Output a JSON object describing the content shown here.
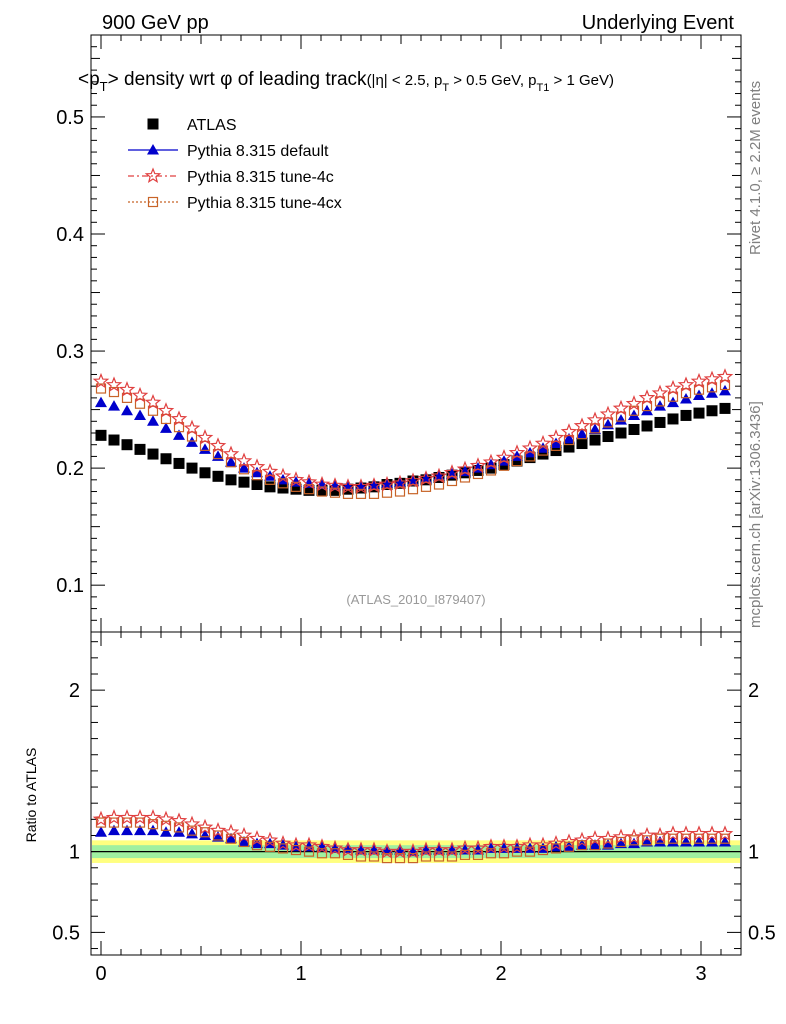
{
  "header": {
    "left": "900 GeV pp",
    "right": "Underlying Event"
  },
  "side_labels": {
    "rivet": "Rivet 4.1.0, ≥ 2.2M events",
    "mcplots": "mcplots.cern.ch [arXiv:1306.3436]"
  },
  "title": {
    "part1": "<p",
    "part1_sub": "T",
    "part2": "> density wrt ",
    "phi": "φ",
    "part3": " of leading track",
    "cuts": "(|η| < 2.5, p",
    "cuts_sub1": "T",
    "cuts2": " > 0.5 GeV, p",
    "cuts_sub2": "T1",
    "cuts3": " > 1 GeV)"
  },
  "watermark": "(ATLAS_2010_I879407)",
  "ratio_ylabel": "Ratio to ATLAS",
  "legend": [
    {
      "label": "ATLAS",
      "marker": "square-filled",
      "color": "#000000"
    },
    {
      "label": "Pythia 8.315 default",
      "marker": "triangle-filled",
      "color": "#0000cc"
    },
    {
      "label": "Pythia 8.315 tune-4c",
      "marker": "star-open",
      "color": "#e04040"
    },
    {
      "label": "Pythia 8.315 tune-4cx",
      "marker": "square-open",
      "color": "#c86428"
    }
  ],
  "chart_data": {
    "type": "scatter",
    "x_range": [
      -0.05,
      3.2
    ],
    "y_range": [
      0.06,
      0.57
    ],
    "ratio_range": [
      0.36,
      2.36
    ],
    "x_ticks": [
      "0",
      "1",
      "2",
      "3"
    ],
    "y_ticks": [
      "0.1",
      "0.2",
      "0.3",
      "0.4",
      "0.5"
    ],
    "ratio_ticks": [
      "0.5",
      "1",
      "2"
    ],
    "x": [
      0.0,
      0.065,
      0.13,
      0.195,
      0.26,
      0.325,
      0.39,
      0.455,
      0.52,
      0.585,
      0.65,
      0.715,
      0.78,
      0.845,
      0.91,
      0.975,
      1.04,
      1.105,
      1.17,
      1.235,
      1.3,
      1.365,
      1.43,
      1.495,
      1.56,
      1.625,
      1.69,
      1.755,
      1.82,
      1.885,
      1.95,
      2.015,
      2.08,
      2.145,
      2.21,
      2.275,
      2.34,
      2.405,
      2.47,
      2.535,
      2.6,
      2.665,
      2.73,
      2.795,
      2.86,
      2.925,
      2.99,
      3.055,
      3.12
    ],
    "series": [
      {
        "name": "ATLAS",
        "values": [
          0.228,
          0.224,
          0.22,
          0.216,
          0.212,
          0.208,
          0.204,
          0.2,
          0.196,
          0.193,
          0.19,
          0.188,
          0.186,
          0.184,
          0.183,
          0.182,
          0.181,
          0.181,
          0.181,
          0.182,
          0.183,
          0.184,
          0.186,
          0.187,
          0.189,
          0.19,
          0.192,
          0.194,
          0.196,
          0.198,
          0.2,
          0.203,
          0.206,
          0.209,
          0.212,
          0.215,
          0.218,
          0.221,
          0.224,
          0.227,
          0.23,
          0.233,
          0.236,
          0.239,
          0.242,
          0.245,
          0.247,
          0.249,
          0.251
        ],
        "ratio": [
          1.0,
          1.0,
          1.0,
          1.0,
          1.0,
          1.0,
          1.0,
          1.0,
          1.0,
          1.0,
          1.0,
          1.0,
          1.0,
          1.0,
          1.0,
          1.0,
          1.0,
          1.0,
          1.0,
          1.0,
          1.0,
          1.0,
          1.0,
          1.0,
          1.0,
          1.0,
          1.0,
          1.0,
          1.0,
          1.0,
          1.0,
          1.0,
          1.0,
          1.0,
          1.0,
          1.0,
          1.0,
          1.0,
          1.0,
          1.0,
          1.0,
          1.0,
          1.0,
          1.0,
          1.0,
          1.0,
          1.0,
          1.0,
          1.0
        ]
      },
      {
        "name": "Pythia 8.315 default",
        "values": [
          0.256,
          0.253,
          0.249,
          0.245,
          0.24,
          0.234,
          0.228,
          0.222,
          0.216,
          0.21,
          0.205,
          0.2,
          0.196,
          0.193,
          0.19,
          0.188,
          0.187,
          0.186,
          0.185,
          0.185,
          0.185,
          0.186,
          0.187,
          0.188,
          0.189,
          0.191,
          0.193,
          0.195,
          0.197,
          0.2,
          0.203,
          0.206,
          0.21,
          0.213,
          0.217,
          0.221,
          0.225,
          0.229,
          0.233,
          0.237,
          0.241,
          0.245,
          0.249,
          0.253,
          0.256,
          0.259,
          0.262,
          0.264,
          0.266
        ],
        "ratio": [
          1.12,
          1.13,
          1.13,
          1.13,
          1.13,
          1.12,
          1.12,
          1.11,
          1.1,
          1.09,
          1.08,
          1.06,
          1.05,
          1.05,
          1.04,
          1.03,
          1.03,
          1.03,
          1.02,
          1.02,
          1.01,
          1.01,
          1.01,
          1.01,
          1.0,
          1.01,
          1.01,
          1.01,
          1.01,
          1.01,
          1.02,
          1.02,
          1.02,
          1.02,
          1.02,
          1.03,
          1.03,
          1.04,
          1.04,
          1.04,
          1.05,
          1.05,
          1.06,
          1.06,
          1.06,
          1.06,
          1.06,
          1.06,
          1.06
        ]
      },
      {
        "name": "Pythia 8.315 tune-4c",
        "values": [
          0.274,
          0.271,
          0.267,
          0.262,
          0.256,
          0.249,
          0.242,
          0.234,
          0.226,
          0.219,
          0.212,
          0.206,
          0.201,
          0.197,
          0.193,
          0.19,
          0.188,
          0.186,
          0.185,
          0.184,
          0.184,
          0.185,
          0.186,
          0.187,
          0.189,
          0.191,
          0.193,
          0.196,
          0.199,
          0.202,
          0.205,
          0.209,
          0.213,
          0.217,
          0.221,
          0.226,
          0.231,
          0.236,
          0.241,
          0.246,
          0.251,
          0.255,
          0.26,
          0.264,
          0.268,
          0.271,
          0.274,
          0.276,
          0.278
        ],
        "ratio": [
          1.2,
          1.21,
          1.21,
          1.21,
          1.21,
          1.2,
          1.19,
          1.17,
          1.15,
          1.13,
          1.12,
          1.1,
          1.08,
          1.07,
          1.05,
          1.04,
          1.04,
          1.03,
          1.02,
          1.01,
          1.01,
          1.01,
          1.0,
          1.0,
          1.0,
          1.01,
          1.01,
          1.01,
          1.02,
          1.02,
          1.03,
          1.03,
          1.03,
          1.04,
          1.04,
          1.05,
          1.06,
          1.07,
          1.08,
          1.08,
          1.09,
          1.09,
          1.1,
          1.1,
          1.11,
          1.11,
          1.11,
          1.11,
          1.11
        ]
      },
      {
        "name": "Pythia 8.315 tune-4cx",
        "values": [
          0.268,
          0.265,
          0.26,
          0.255,
          0.249,
          0.242,
          0.235,
          0.227,
          0.219,
          0.212,
          0.205,
          0.199,
          0.194,
          0.19,
          0.187,
          0.184,
          0.182,
          0.18,
          0.179,
          0.178,
          0.178,
          0.178,
          0.179,
          0.18,
          0.182,
          0.184,
          0.186,
          0.189,
          0.192,
          0.195,
          0.198,
          0.202,
          0.206,
          0.21,
          0.215,
          0.219,
          0.224,
          0.229,
          0.234,
          0.239,
          0.244,
          0.249,
          0.253,
          0.257,
          0.261,
          0.264,
          0.267,
          0.269,
          0.271
        ],
        "ratio": [
          1.18,
          1.18,
          1.18,
          1.18,
          1.17,
          1.16,
          1.15,
          1.13,
          1.12,
          1.1,
          1.08,
          1.06,
          1.04,
          1.03,
          1.02,
          1.01,
          1.0,
          0.99,
          0.99,
          0.98,
          0.97,
          0.97,
          0.96,
          0.96,
          0.96,
          0.97,
          0.97,
          0.97,
          0.98,
          0.98,
          0.99,
          0.99,
          1.0,
          1.0,
          1.01,
          1.02,
          1.03,
          1.04,
          1.04,
          1.05,
          1.06,
          1.07,
          1.07,
          1.08,
          1.08,
          1.08,
          1.08,
          1.08,
          1.08
        ]
      }
    ]
  }
}
